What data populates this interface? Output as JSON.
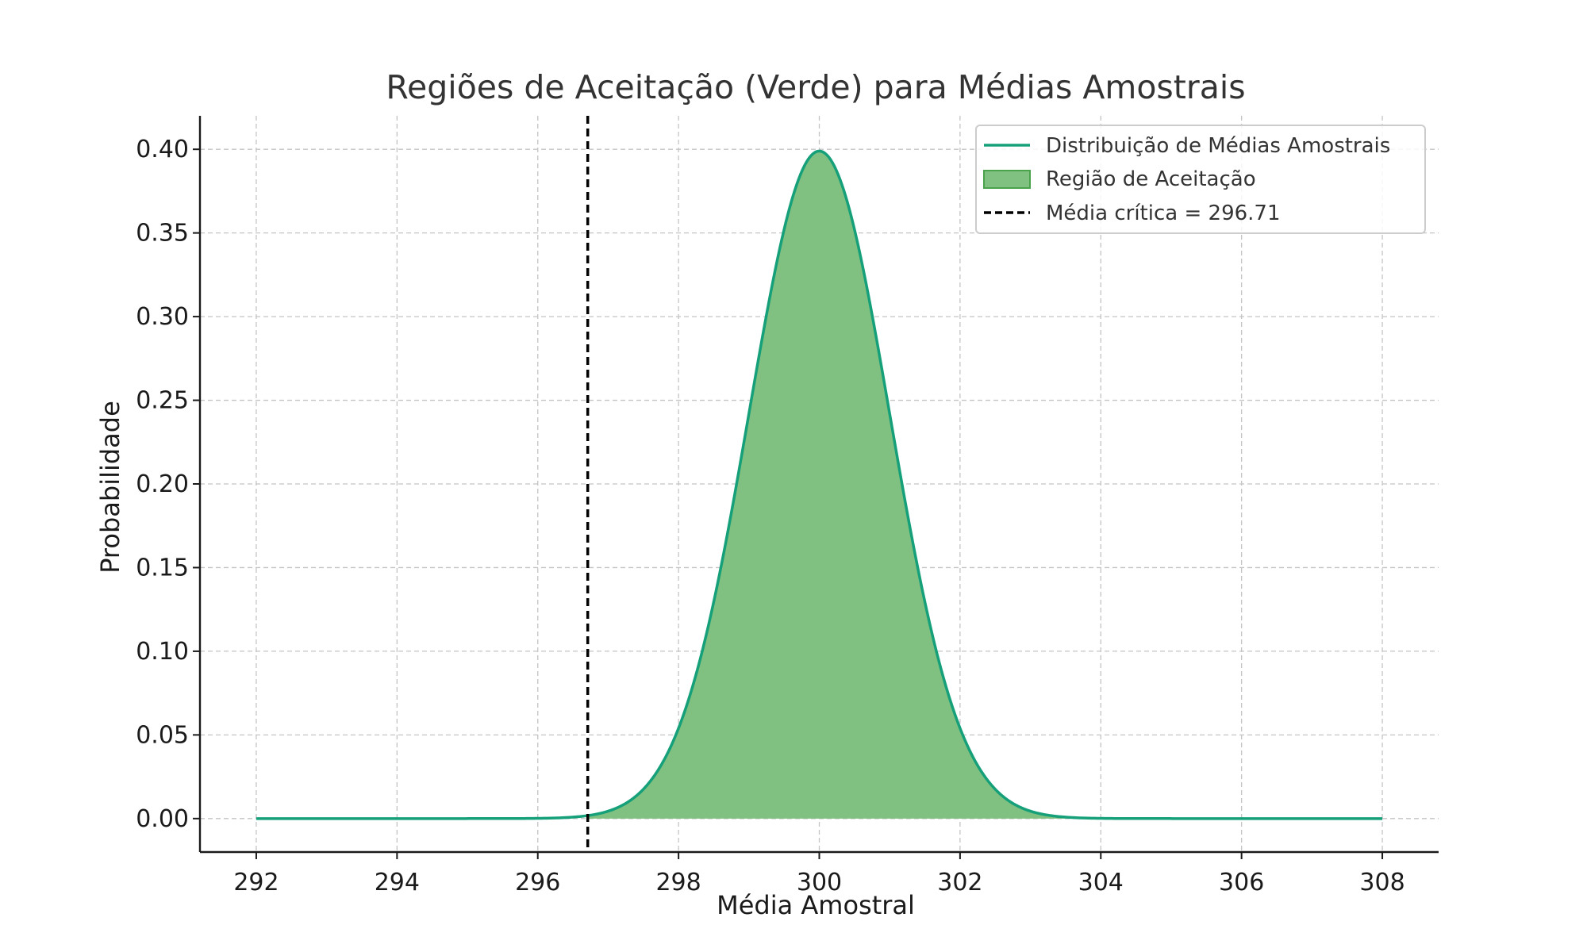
{
  "chart_data": {
    "type": "area",
    "title": "Regiões de Aceitação (Verde) para Médias Amostrais",
    "xlabel": "Média Amostral",
    "ylabel": "Probabilidade",
    "xlim": [
      291.2,
      308.8
    ],
    "ylim": [
      -0.02,
      0.42
    ],
    "x_ticks": [
      "292",
      "294",
      "296",
      "298",
      "300",
      "302",
      "304",
      "306",
      "308"
    ],
    "y_ticks": [
      "0.00",
      "0.05",
      "0.10",
      "0.15",
      "0.20",
      "0.25",
      "0.30",
      "0.35",
      "0.40"
    ],
    "grid": true,
    "legend_position": "top-right",
    "colors": {
      "curve": "#16a07a",
      "fill": "#80c080",
      "fill_edge": "#4aa34a",
      "critical_line": "#000000"
    },
    "series": [
      {
        "name": "Distribuição de Médias Amostrais",
        "type": "line",
        "distribution": "normal",
        "mean": 300,
        "std": 1,
        "x_range": [
          292,
          308
        ]
      },
      {
        "name": "Região de Aceitação",
        "type": "area",
        "x_range": [
          296.71,
          308
        ]
      },
      {
        "name": "Média crítica = 296.71",
        "type": "vline",
        "x": 296.71
      }
    ]
  }
}
